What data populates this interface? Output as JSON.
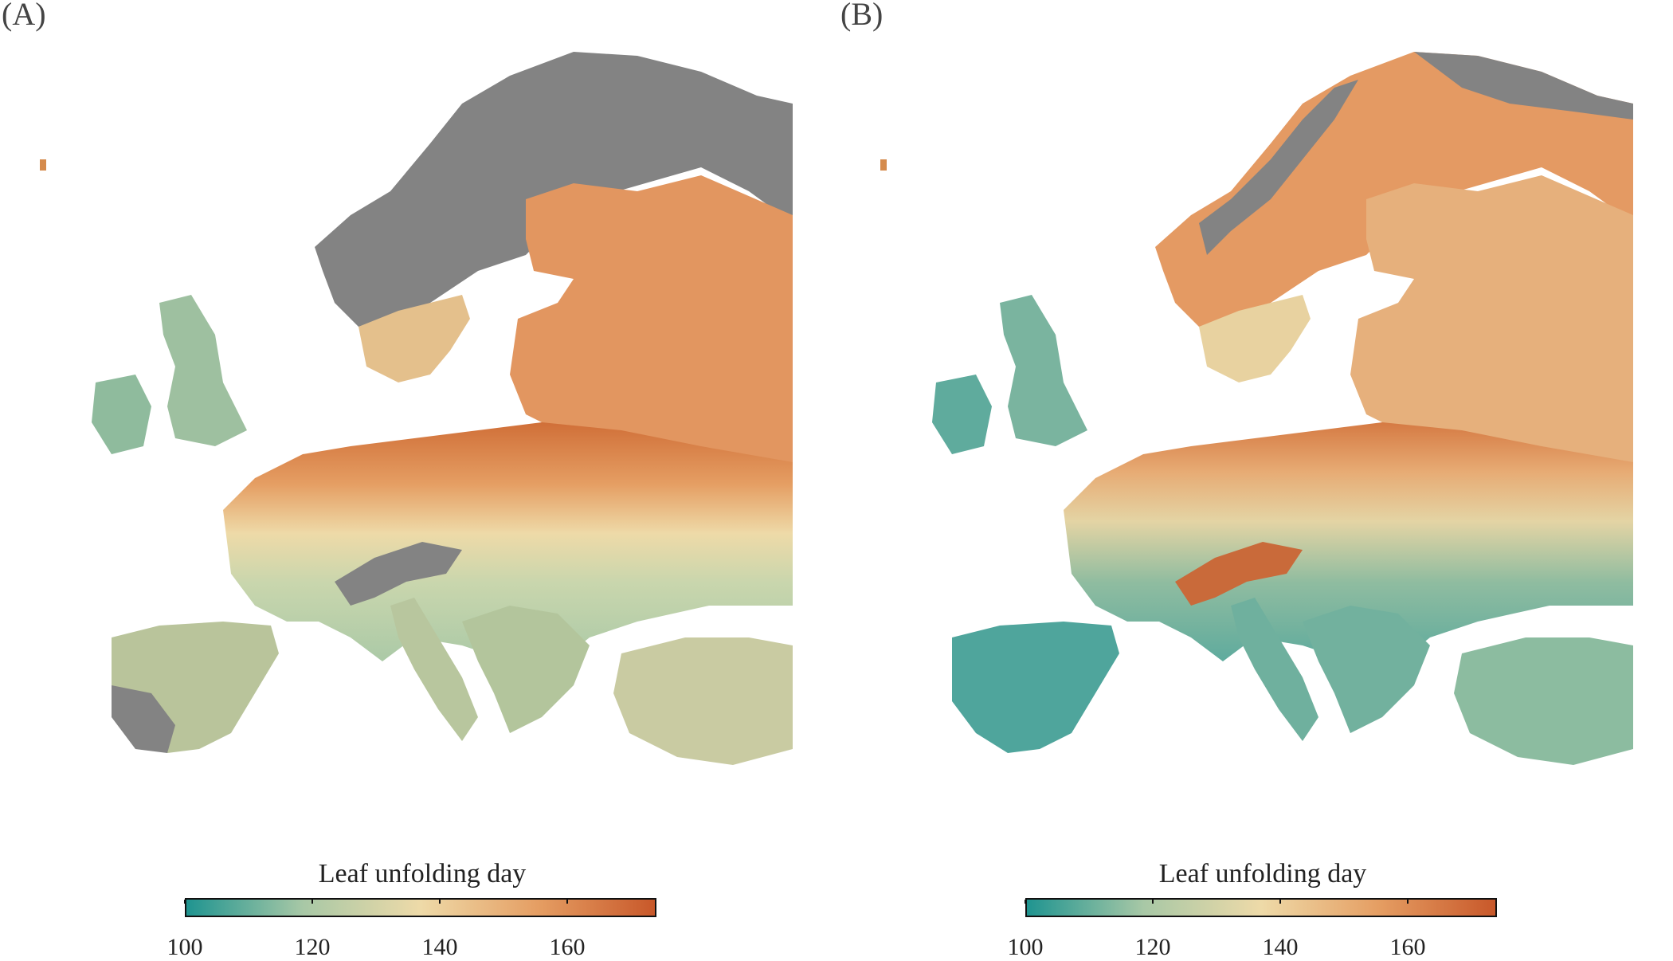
{
  "panels": [
    {
      "label": "(A)",
      "legend_title": "Leaf unfolding day"
    },
    {
      "label": "(B)",
      "legend_title": "Leaf unfolding day"
    }
  ],
  "colorbar": {
    "ticks": [
      100,
      120,
      140,
      160
    ],
    "min": 100,
    "max": 174,
    "colors": [
      "#1f9490",
      "#a8c8a6",
      "#eedaa8",
      "#e59e63",
      "#c8582a"
    ]
  },
  "no_data_color": "#838383"
}
